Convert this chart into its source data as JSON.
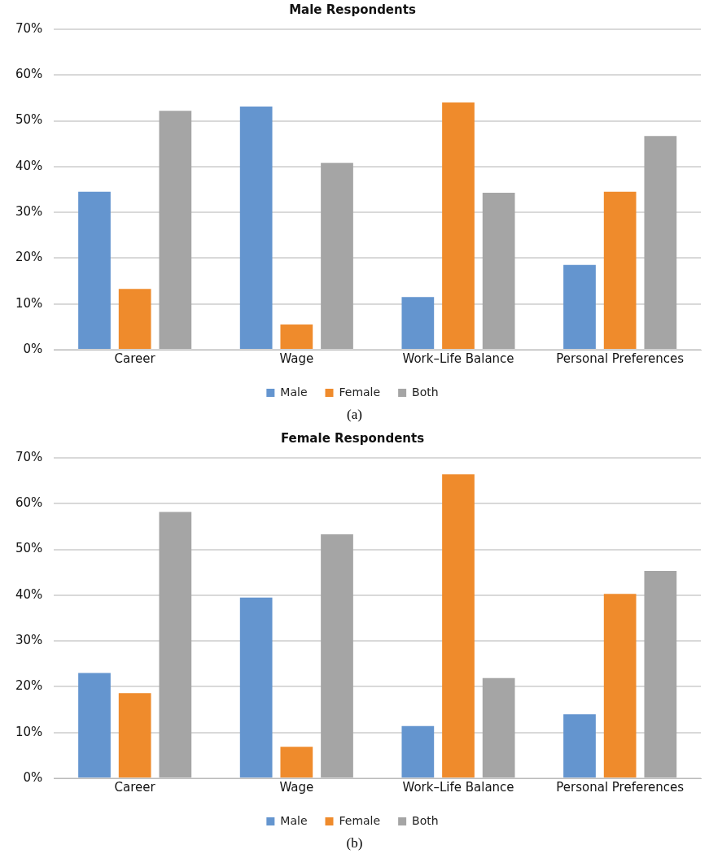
{
  "chart_data": [
    {
      "type": "bar",
      "title": "Male Respondents",
      "categories": [
        "Career",
        "Wage",
        "Work–Life Balance",
        "Personal Preferences"
      ],
      "series": [
        {
          "name": "Male",
          "color": "#6495cf",
          "values": [
            34.5,
            53.1,
            11.5,
            18.5
          ]
        },
        {
          "name": "Female",
          "color": "#ef8b2c",
          "values": [
            13.3,
            5.5,
            54,
            34.5
          ]
        },
        {
          "name": "Both",
          "color": "#a5a5a5",
          "values": [
            52.2,
            40.8,
            34.3,
            46.7
          ]
        }
      ],
      "ylim": [
        0,
        70
      ],
      "yticks": [
        {
          "value": 0,
          "label": "0%"
        },
        {
          "value": 10,
          "label": "10%"
        },
        {
          "value": 20,
          "label": "20%"
        },
        {
          "value": 30,
          "label": "30%"
        },
        {
          "value": 40,
          "label": "40%"
        },
        {
          "value": 50,
          "label": "50%"
        },
        {
          "value": 60,
          "label": "60%"
        },
        {
          "value": 70,
          "label": "70%"
        }
      ],
      "grid": "y",
      "legend": "bottom",
      "annotations": [
        "(a)"
      ]
    },
    {
      "type": "bar",
      "title": "Female Respondents",
      "categories": [
        "Career",
        "Wage",
        "Work–Life Balance",
        "Personal Preferences"
      ],
      "series": [
        {
          "name": "Male",
          "color": "#6495cf",
          "values": [
            23,
            39.5,
            11.4,
            14
          ]
        },
        {
          "name": "Female",
          "color": "#ef8b2c",
          "values": [
            18.6,
            6.9,
            66.4,
            40.3
          ]
        },
        {
          "name": "Both",
          "color": "#a5a5a5",
          "values": [
            58.2,
            53.3,
            21.9,
            45.3
          ]
        }
      ],
      "ylim": [
        0,
        70
      ],
      "yticks": [
        {
          "value": 0,
          "label": "0%"
        },
        {
          "value": 10,
          "label": "10%"
        },
        {
          "value": 20,
          "label": "20%"
        },
        {
          "value": 30,
          "label": "30%"
        },
        {
          "value": 40,
          "label": "40%"
        },
        {
          "value": 50,
          "label": "50%"
        },
        {
          "value": 60,
          "label": "60%"
        },
        {
          "value": 70,
          "label": "70%"
        }
      ],
      "grid": "y",
      "legend": "bottom",
      "annotations": [
        "(b)"
      ]
    }
  ]
}
